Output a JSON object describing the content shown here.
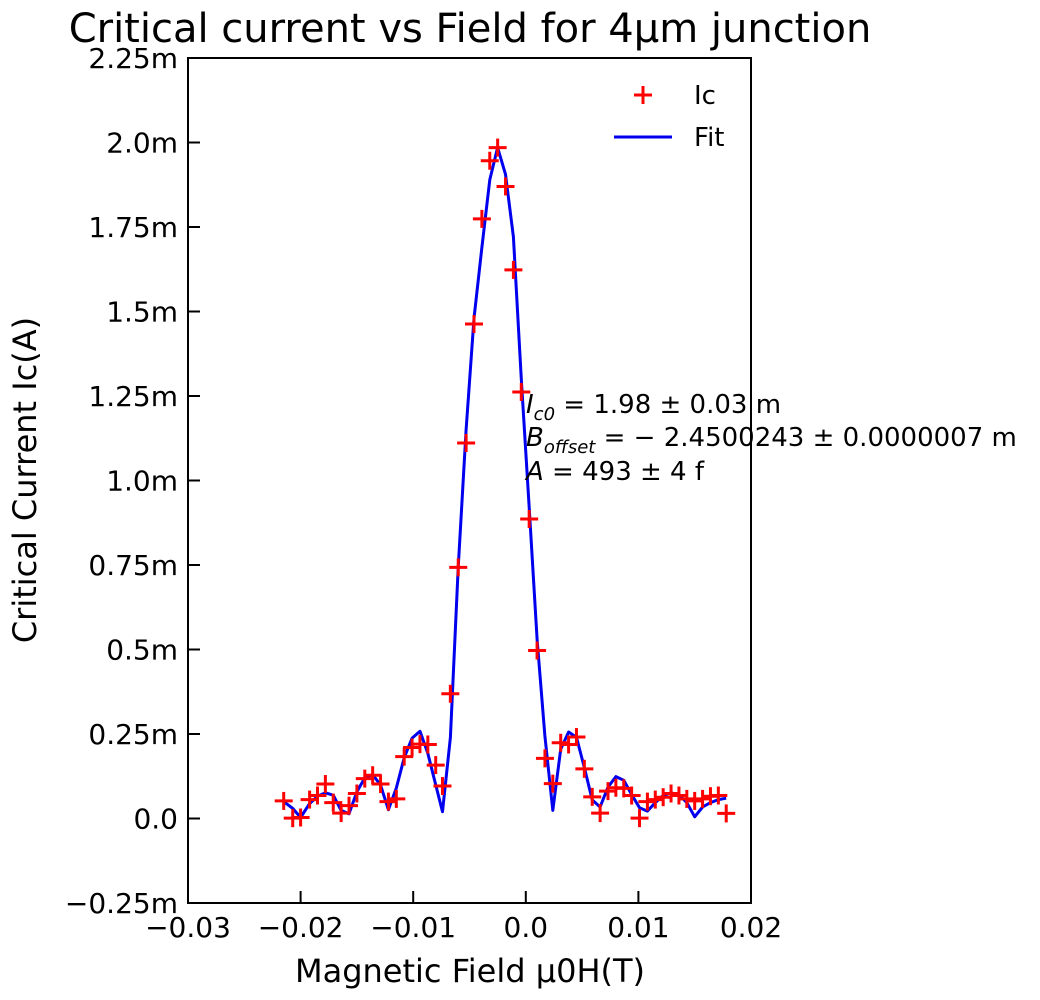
{
  "chart_data": {
    "type": "scatter",
    "title": "Critical current vs Field for 4μm junction",
    "xlabel": "Magnetic Field μ0H(T)",
    "ylabel": "Critical Current Ic(A)",
    "xlim": [
      -0.03,
      0.02
    ],
    "ylim": [
      -0.00025,
      0.00225
    ],
    "x_ticks": [
      -0.03,
      -0.02,
      -0.01,
      0.0,
      0.01,
      0.02
    ],
    "x_tick_labels": [
      "−0.03",
      "−0.02",
      "−0.01",
      "0.0",
      "0.01",
      "0.02"
    ],
    "y_ticks": [
      -0.00025,
      0.0,
      0.00025,
      0.0005,
      0.00075,
      0.001,
      0.00125,
      0.0015,
      0.00175,
      0.002,
      0.00225
    ],
    "y_tick_labels": [
      "−0.25m",
      "0.0",
      "0.25m",
      "0.5m",
      "0.75m",
      "1.0m",
      "1.25m",
      "1.5m",
      "1.75m",
      "2.0m",
      "2.25m"
    ],
    "grid": false,
    "legend_position": "top-right",
    "series": [
      {
        "name": "Ic",
        "style": "markers",
        "marker": "plus",
        "color": "#ff0000",
        "x": [
          -0.0215,
          -0.0207,
          -0.02,
          -0.0192,
          -0.0185,
          -0.0178,
          -0.0171,
          -0.0164,
          -0.0157,
          -0.015,
          -0.0143,
          -0.0136,
          -0.0129,
          -0.0122,
          -0.0115,
          -0.0108,
          -0.0101,
          -0.0094,
          -0.0087,
          -0.008,
          -0.0074,
          -0.0067,
          -0.006,
          -0.0053,
          -0.0046,
          -0.0039,
          -0.0032,
          -0.0025,
          -0.0018,
          -0.0011,
          -0.0004,
          0.0003,
          0.001,
          0.0017,
          0.0024,
          0.0031,
          0.0038,
          0.0045,
          0.0052,
          0.0059,
          0.0066,
          0.0073,
          0.008,
          0.0087,
          0.0094,
          0.0101,
          0.0108,
          0.0115,
          0.0122,
          0.0129,
          0.0136,
          0.0143,
          0.015,
          0.0157,
          0.0164,
          0.0171,
          0.0178
        ],
        "y": [
          5.2e-05,
          1e-06,
          3e-06,
          5.6e-05,
          6.8e-05,
          0.000102,
          4.7e-05,
          1.6e-05,
          3.8e-05,
          7.4e-05,
          0.000118,
          0.000128,
          0.000102,
          5e-05,
          5.8e-05,
          0.000183,
          0.00021,
          0.00022,
          0.000219,
          0.000158,
          9.6e-05,
          0.000369,
          0.000743,
          0.001111,
          0.001463,
          0.001774,
          0.001946,
          0.001985,
          0.00187,
          0.001623,
          0.001262,
          0.000886,
          0.000497,
          0.000178,
          0.000103,
          0.000224,
          0.000219,
          0.000241,
          0.000147,
          6.4e-05,
          1.6e-05,
          8.1e-05,
          9.1e-05,
          8.9e-05,
          6.8e-05,
          1e-06,
          5e-05,
          5.6e-05,
          6.3e-05,
          7.4e-05,
          6.8e-05,
          5.8e-05,
          5.2e-05,
          5.8e-05,
          6.6e-05,
          6.8e-05,
          1.5e-05
        ]
      },
      {
        "name": "Fit",
        "style": "line",
        "color": "#0000ee",
        "x": [
          -0.0215,
          -0.0207,
          -0.02,
          -0.0192,
          -0.0185,
          -0.0178,
          -0.0171,
          -0.0164,
          -0.0157,
          -0.015,
          -0.0143,
          -0.0136,
          -0.0129,
          -0.0122,
          -0.0115,
          -0.0108,
          -0.0101,
          -0.0094,
          -0.0087,
          -0.008,
          -0.0074,
          -0.0067,
          -0.006,
          -0.0053,
          -0.0046,
          -0.0039,
          -0.0032,
          -0.0025,
          -0.0018,
          -0.0011,
          -0.0004,
          0.0003,
          0.001,
          0.0017,
          0.0024,
          0.0031,
          0.0038,
          0.0045,
          0.0052,
          0.0059,
          0.0066,
          0.0073,
          0.008,
          0.0087,
          0.0094,
          0.0101,
          0.0108,
          0.0115,
          0.0122,
          0.0129,
          0.0136,
          0.0143,
          0.015,
          0.0157,
          0.0164,
          0.0171,
          0.0178
        ],
        "y": [
          5e-05,
          3e-05,
          3e-06,
          4.4e-05,
          6.6e-05,
          7.6e-05,
          6.9e-05,
          2.4e-05,
          1.4e-05,
          7.9e-05,
          0.00012,
          0.00013,
          9.9e-05,
          2.6e-05,
          9e-05,
          0.00018,
          0.000238,
          0.000258,
          0.000193,
          0.0001,
          2e-05,
          0.00024,
          0.000742,
          0.00115,
          0.00148,
          0.00169,
          0.00189,
          0.001985,
          0.001906,
          0.001721,
          0.0013,
          0.00092,
          0.00053,
          0.000244,
          2.4e-05,
          0.000205,
          0.000256,
          0.00024,
          0.00015,
          5.5e-05,
          3.4e-05,
          9.3e-05,
          0.000124,
          0.000113,
          7.1e-05,
          3.2e-05,
          2.2e-05,
          4.7e-05,
          6.8e-05,
          7.6e-05,
          7e-05,
          4.7e-05,
          5e-06,
          3.4e-05,
          4.7e-05,
          5.6e-05,
          6e-05
        ]
      }
    ],
    "annotations": {
      "ic0": {
        "symbol": "I",
        "sub": "c0",
        "rest": " = 1.98 ± 0.03 m"
      },
      "boffset": {
        "symbol": "B",
        "sub": "offset",
        "rest": " = − 2.4500243 ± 0.0000007 m"
      },
      "amp": {
        "symbol": "A",
        "sub": "",
        "rest": " = 493 ± 4 f"
      }
    }
  }
}
